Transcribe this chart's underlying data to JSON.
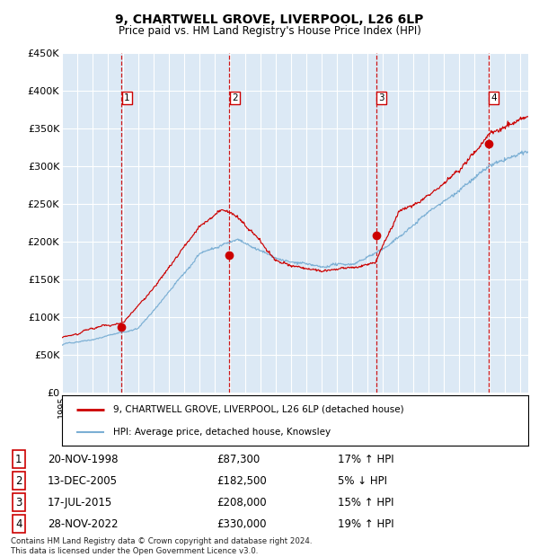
{
  "title": "9, CHARTWELL GROVE, LIVERPOOL, L26 6LP",
  "subtitle": "Price paid vs. HM Land Registry's House Price Index (HPI)",
  "bg_color": "#dce9f5",
  "grid_color": "#ffffff",
  "hpi_color": "#7bafd4",
  "price_color": "#cc0000",
  "ylim": [
    0,
    450000
  ],
  "yticks": [
    0,
    50000,
    100000,
    150000,
    200000,
    250000,
    300000,
    350000,
    400000,
    450000
  ],
  "ytick_labels": [
    "£0",
    "£50K",
    "£100K",
    "£150K",
    "£200K",
    "£250K",
    "£300K",
    "£350K",
    "£400K",
    "£450K"
  ],
  "transactions": [
    {
      "label": "1",
      "date_year": 1998.9,
      "price": 87300
    },
    {
      "label": "2",
      "date_year": 2005.96,
      "price": 182500
    },
    {
      "label": "3",
      "date_year": 2015.54,
      "price": 208000
    },
    {
      "label": "4",
      "date_year": 2022.91,
      "price": 330000
    }
  ],
  "sale_labels": [
    {
      "n": "1",
      "date": "20-NOV-1998",
      "price": "£87,300",
      "pct": "17%",
      "dir": "↑"
    },
    {
      "n": "2",
      "date": "13-DEC-2005",
      "price": "£182,500",
      "pct": "5%",
      "dir": "↓"
    },
    {
      "n": "3",
      "date": "17-JUL-2015",
      "price": "£208,000",
      "pct": "15%",
      "dir": "↑"
    },
    {
      "n": "4",
      "date": "28-NOV-2022",
      "price": "£330,000",
      "pct": "19%",
      "dir": "↑"
    }
  ],
  "legend_line1": "9, CHARTWELL GROVE, LIVERPOOL, L26 6LP (detached house)",
  "legend_line2": "HPI: Average price, detached house, Knowsley",
  "footer": "Contains HM Land Registry data © Crown copyright and database right 2024.\nThis data is licensed under the Open Government Licence v3.0.",
  "xmin": 1995.0,
  "xmax": 2025.5
}
